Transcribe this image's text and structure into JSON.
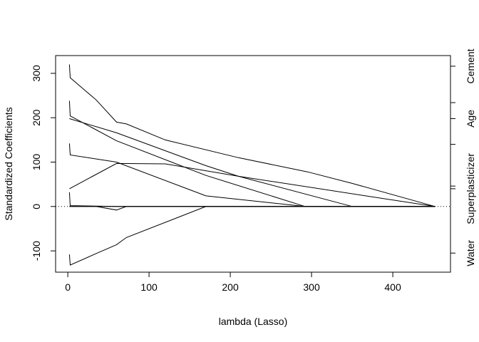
{
  "chart_data": {
    "type": "line",
    "title": "",
    "xlabel": "lambda (Lasso)",
    "ylabel": "Standardized Coefficients",
    "xlim": [
      -15,
      471
    ],
    "ylim": [
      -148,
      340
    ],
    "xticks": [
      0,
      100,
      200,
      300,
      400
    ],
    "yticks": [
      -100,
      0,
      100,
      200,
      300
    ],
    "zero_line": "dotted",
    "grid": false,
    "legend": "none",
    "right_axis_labels": [
      "Cement",
      "Age",
      "Superplasticizer",
      "Water"
    ],
    "right_axis_ticks": [
      {
        "value": 316,
        "label": "Cement"
      },
      {
        "value": 234,
        "label": ""
      },
      {
        "value": 198,
        "label": "Age"
      },
      {
        "value": 140,
        "label": ""
      },
      {
        "value": 46,
        "label": ""
      },
      {
        "value": 40,
        "label": "Superplasticizer"
      },
      {
        "value": -105,
        "label": "Water"
      }
    ],
    "series": [
      {
        "x": [
          2,
          3,
          35,
          60,
          72,
          120,
          210,
          295,
          350,
          452
        ],
        "y": [
          320,
          290,
          240,
          190,
          186,
          150,
          110,
          78,
          52,
          0
        ]
      },
      {
        "x": [
          2,
          3,
          60,
          170,
          292,
          452
        ],
        "y": [
          238,
          204,
          148,
          70,
          0,
          0
        ]
      },
      {
        "x": [
          2,
          60,
          170,
          210,
          350,
          452
        ],
        "y": [
          198,
          166,
          92,
          68,
          0,
          0
        ]
      },
      {
        "x": [
          2,
          3,
          60,
          170,
          292,
          452
        ],
        "y": [
          142,
          116,
          100,
          24,
          0,
          0
        ]
      },
      {
        "x": [
          2,
          60,
          120,
          210,
          452
        ],
        "y": [
          40,
          97,
          96,
          68,
          0
        ]
      },
      {
        "x": [
          2,
          3,
          60,
          452
        ],
        "y": [
          32,
          2,
          0,
          0
        ]
      },
      {
        "x": [
          2,
          3,
          35,
          60,
          72,
          452
        ],
        "y": [
          0,
          0,
          0,
          -8,
          0,
          0
        ]
      },
      {
        "x": [
          2,
          3,
          170,
          452
        ],
        "y": [
          0,
          0,
          0,
          0
        ]
      },
      {
        "x": [
          2,
          3,
          35,
          60,
          72,
          170,
          452
        ],
        "y": [
          -108,
          -132,
          -106,
          -86,
          -70,
          0,
          0
        ]
      }
    ]
  }
}
